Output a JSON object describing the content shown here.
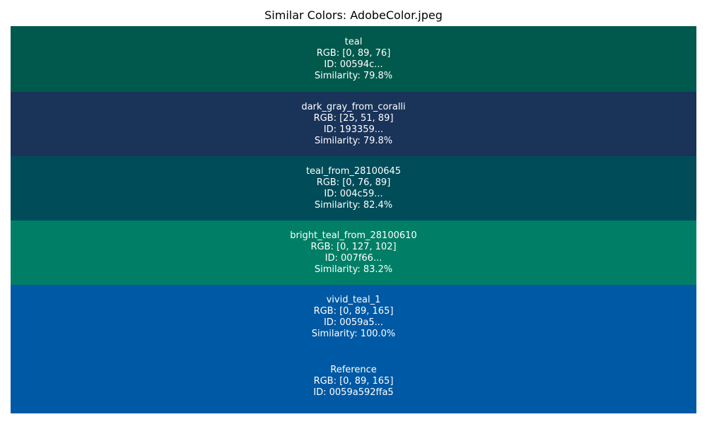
{
  "title": "Similar Colors: AdobeColor.jpeg",
  "chart_data": {
    "type": "table",
    "title": "Similar Colors: AdobeColor.jpeg",
    "swatches": [
      {
        "name": "teal",
        "color": "#00594c",
        "rgb_text": "RGB: [0, 89, 76]",
        "id_text": "ID: 00594c...",
        "similarity_text": "Similarity: 79.8%",
        "rgb": [
          0,
          89,
          76
        ],
        "similarity": 79.8
      },
      {
        "name": "dark_gray_from_coralli",
        "color": "#193359",
        "rgb_text": "RGB: [25, 51, 89]",
        "id_text": "ID: 193359...",
        "similarity_text": "Similarity: 79.8%",
        "rgb": [
          25,
          51,
          89
        ],
        "similarity": 79.8
      },
      {
        "name": "teal_from_28100645",
        "color": "#004c59",
        "rgb_text": "RGB: [0, 76, 89]",
        "id_text": "ID: 004c59...",
        "similarity_text": "Similarity: 82.4%",
        "rgb": [
          0,
          76,
          89
        ],
        "similarity": 82.4
      },
      {
        "name": "bright_teal_from_28100610",
        "color": "#007f66",
        "rgb_text": "RGB: [0, 127, 102]",
        "id_text": "ID: 007f66...",
        "similarity_text": "Similarity: 83.2%",
        "rgb": [
          0,
          127,
          102
        ],
        "similarity": 83.2
      },
      {
        "name": "vivid_teal_1",
        "color": "#0059a5",
        "rgb_text": "RGB: [0, 89, 165]",
        "id_text": "ID: 0059a5...",
        "similarity_text": "Similarity: 100.0%",
        "rgb": [
          0,
          89,
          165
        ],
        "similarity": 100.0
      },
      {
        "name": "Reference",
        "color": "#0059a5",
        "rgb_text": "RGB: [0, 89, 165]",
        "id_text": "ID: 0059a592ffa5",
        "similarity_text": "",
        "rgb": [
          0,
          89,
          165
        ],
        "similarity": null
      }
    ]
  }
}
